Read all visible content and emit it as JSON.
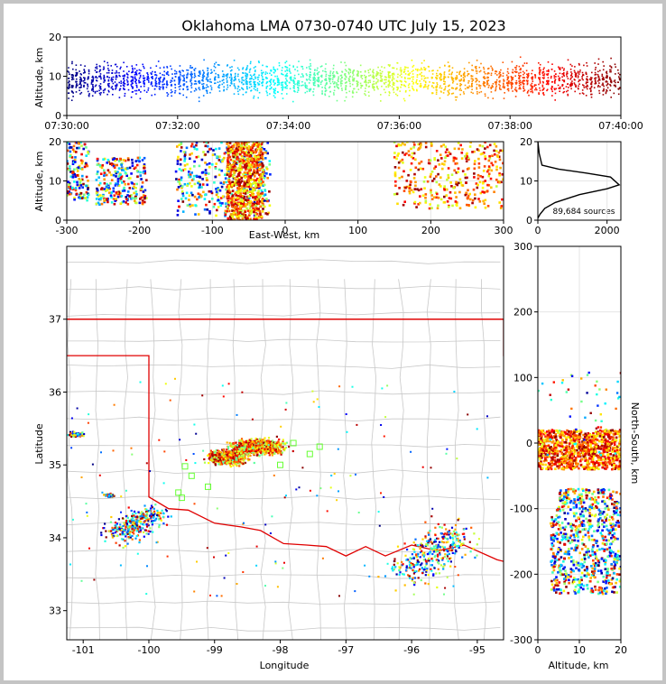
{
  "chart_data": [
    {
      "id": "time_height",
      "type": "scatter",
      "title": "Oklahoma LMA 0730-0740 UTC July 15, 2023",
      "ylabel": "Altitude, km",
      "xlabel": "",
      "x_ticks": [
        "07:30:00",
        "07:32:00",
        "07:34:00",
        "07:36:00",
        "07:38:00",
        "07:40:00"
      ],
      "xlim": [
        "07:30:00",
        "07:40:00"
      ],
      "ylim": [
        0,
        20
      ],
      "y_ticks": [
        0,
        10,
        20
      ],
      "series": [
        {
          "x_start": "07:30:00",
          "x_end": "07:40:00",
          "altitude_range": [
            0,
            20
          ],
          "color_by": "time"
        }
      ]
    },
    {
      "id": "ew_height",
      "type": "scatter",
      "xlabel": "East-West, km",
      "ylabel": "Altitude, km",
      "xlim": [
        -300,
        300
      ],
      "ylim": [
        0,
        20
      ],
      "x_ticks": [
        -300,
        -200,
        -100,
        0,
        100,
        200,
        300
      ],
      "y_ticks": [
        0,
        10,
        20
      ],
      "clusters": [
        {
          "x_range": [
            -300,
            -270
          ],
          "alt_range": [
            5,
            20
          ]
        },
        {
          "x_range": [
            -260,
            -190
          ],
          "alt_range": [
            4,
            16
          ]
        },
        {
          "x_range": [
            -150,
            -20
          ],
          "alt_range": [
            1,
            20
          ]
        },
        {
          "x_range": [
            -80,
            -30
          ],
          "alt_range": [
            0,
            20
          ]
        },
        {
          "x_range": [
            150,
            300
          ],
          "alt_range": [
            3,
            20
          ]
        }
      ]
    },
    {
      "id": "altitude_histogram",
      "type": "line",
      "annotation": "89,684 sources",
      "xlim": [
        0,
        2400
      ],
      "ylim": [
        0,
        20
      ],
      "x_ticks": [
        0,
        2000
      ],
      "y_ticks": [
        0,
        10,
        20
      ],
      "profile": [
        [
          0,
          20
        ],
        [
          40,
          17
        ],
        [
          120,
          14
        ],
        [
          600,
          13
        ],
        [
          1400,
          12
        ],
        [
          2100,
          11
        ],
        [
          2350,
          9
        ],
        [
          2000,
          8
        ],
        [
          1200,
          6.5
        ],
        [
          500,
          4.5
        ],
        [
          200,
          3
        ],
        [
          60,
          1.5
        ],
        [
          0,
          0.5
        ]
      ]
    },
    {
      "id": "plan_view",
      "type": "scatter",
      "xlabel": "Longitude",
      "ylabel": "Latitude",
      "xlim": [
        -101.25,
        -94.6
      ],
      "ylim": [
        32.6,
        38.0
      ],
      "x_ticks": [
        -101,
        -100,
        -99,
        -98,
        -97,
        -96,
        -95
      ],
      "y_ticks": [
        33,
        34,
        35,
        36,
        37
      ],
      "clusters": [
        {
          "lon": -98.35,
          "lat": 35.25,
          "spread": [
            0.45,
            0.12
          ]
        },
        {
          "lon": -98.8,
          "lat": 35.1,
          "spread": [
            0.35,
            0.12
          ]
        },
        {
          "lon": -100.2,
          "lat": 34.2,
          "spread": [
            0.35,
            0.18
          ]
        },
        {
          "lon": -95.7,
          "lat": 33.8,
          "spread": [
            0.45,
            0.3
          ]
        },
        {
          "lon": -101.1,
          "lat": 35.42,
          "spread": [
            0.12,
            0.04
          ]
        },
        {
          "lon": -100.6,
          "lat": 34.58,
          "spread": [
            0.1,
            0.03
          ]
        }
      ],
      "stations_marker": "green-square"
    },
    {
      "id": "ns_height",
      "type": "scatter",
      "xlabel": "Altitude, km",
      "ylabel": "North-South, km",
      "xlim": [
        0,
        20
      ],
      "ylim": [
        -300,
        300
      ],
      "x_ticks": [
        0,
        10,
        20
      ],
      "y_ticks": [
        -300,
        -200,
        -100,
        0,
        100,
        200,
        300
      ],
      "clusters": [
        {
          "ns_range": [
            -40,
            20
          ],
          "alt_range": [
            0,
            20
          ]
        },
        {
          "ns_range": [
            -100,
            -70
          ],
          "alt_range": [
            5,
            20
          ]
        },
        {
          "ns_range": [
            -230,
            -100
          ],
          "alt_range": [
            3,
            20
          ]
        }
      ]
    }
  ],
  "colors": {
    "time_colormap": [
      "#00007f",
      "#0000ff",
      "#007fff",
      "#00ffff",
      "#7fff7f",
      "#ffff00",
      "#ff7f00",
      "#ff0000",
      "#7f0000"
    ],
    "state_border": "#e00000",
    "county_lines": "#c8c8c8",
    "station": "#66ff33"
  }
}
